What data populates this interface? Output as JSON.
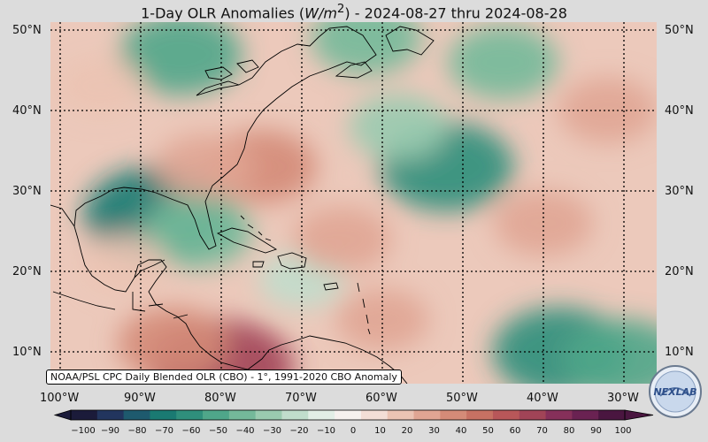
{
  "title": {
    "prefix": "1-Day OLR Anomalies (",
    "var": "W/m",
    "sup": "2",
    "suffix": ") - 2024-08-27 thru 2024-08-28"
  },
  "lat_labels": [
    "50°N",
    "40°N",
    "30°N",
    "20°N",
    "10°N"
  ],
  "lon_labels": [
    "100°W",
    "90°W",
    "80°W",
    "70°W",
    "60°W",
    "50°W",
    "40°W",
    "30°W"
  ],
  "credit": "NOAA/PSL CPC Daily Blended OLR (CBO) - 1°, 1991-2020 CBO Anomaly",
  "logo_text": "NEXLAB",
  "colorbar": {
    "ticks": [
      "−100",
      "−90",
      "−80",
      "−70",
      "−60",
      "−50",
      "−40",
      "−30",
      "−20",
      "−10",
      "0",
      "10",
      "20",
      "30",
      "40",
      "50",
      "60",
      "70",
      "80",
      "90",
      "100"
    ],
    "colors": [
      "#1b1b3a",
      "#22355e",
      "#1e5a6e",
      "#1a7a72",
      "#2f8f7c",
      "#4fa68a",
      "#74b99a",
      "#9acbb0",
      "#c0ddcc",
      "#e2eee6",
      "#f6f1ee",
      "#f3ded6",
      "#ebc3b3",
      "#e0a593",
      "#d48b78",
      "#c77163",
      "#b85759",
      "#a14457",
      "#86305a",
      "#6a2252",
      "#4a1640"
    ]
  },
  "map": {
    "extent": {
      "west_deg_w": 100,
      "east_deg_w": 25,
      "north_deg_n": 52,
      "south_deg_n": 6
    },
    "ocean_base": "#ecc9bb",
    "anomaly_blobs": [
      {
        "lon": -88,
        "lat": 27,
        "value": -70
      },
      {
        "lon": -83,
        "lat": 25,
        "value": -40
      },
      {
        "lon": -52,
        "lat": 33,
        "value": -60
      },
      {
        "lon": -58,
        "lat": 38,
        "value": -30
      },
      {
        "lon": -85,
        "lat": 47,
        "value": -50
      },
      {
        "lon": -62,
        "lat": 49,
        "value": -40
      },
      {
        "lon": -45,
        "lat": 46,
        "value": -40
      },
      {
        "lon": -38,
        "lat": 10,
        "value": -60
      },
      {
        "lon": -30,
        "lat": 9,
        "value": -50
      },
      {
        "lon": -70,
        "lat": 19,
        "value": -20
      },
      {
        "lon": -80,
        "lat": 8,
        "value": 70
      },
      {
        "lon": -86,
        "lat": 11,
        "value": 40
      },
      {
        "lon": -75,
        "lat": 33,
        "value": 40
      },
      {
        "lon": -82,
        "lat": 33,
        "value": 30
      },
      {
        "lon": -65,
        "lat": 24,
        "value": 30
      },
      {
        "lon": -40,
        "lat": 26,
        "value": 30
      },
      {
        "lon": -32,
        "lat": 40,
        "value": 30
      },
      {
        "lon": -95,
        "lat": 43,
        "value": 20
      },
      {
        "lon": -92,
        "lat": 21,
        "value": 20
      },
      {
        "lon": -60,
        "lat": 14,
        "value": 25
      }
    ]
  }
}
